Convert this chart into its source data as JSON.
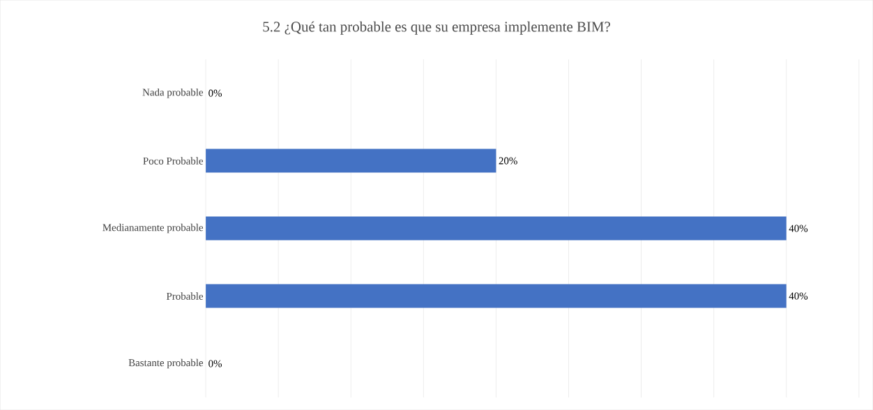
{
  "chart_data": {
    "type": "bar",
    "orientation": "horizontal",
    "title": "5.2 ¿Qué tan probable es que su empresa implemente BIM?",
    "categories": [
      "Nada probable",
      "Poco Probable",
      "Medianamente probable",
      "Probable",
      "Bastante probable"
    ],
    "values": [
      0,
      20,
      40,
      40,
      0
    ],
    "value_labels": [
      "0%",
      "20%",
      "40%",
      "40%",
      "0%"
    ],
    "color": "#4472c4",
    "xlim": [
      0,
      45
    ],
    "xticks": [
      {
        "value": 0,
        "label": null
      },
      {
        "value": 5,
        "label": null
      },
      {
        "value": 10,
        "label": null
      },
      {
        "value": 15,
        "label": null
      },
      {
        "value": 20,
        "label": null
      },
      {
        "value": 25,
        "label": null
      },
      {
        "value": 30,
        "label": null
      },
      {
        "value": 35,
        "label": null
      },
      {
        "value": 40,
        "label": null
      },
      {
        "value": 45,
        "label": null
      }
    ],
    "grid": "x",
    "tick_labels": "y"
  }
}
